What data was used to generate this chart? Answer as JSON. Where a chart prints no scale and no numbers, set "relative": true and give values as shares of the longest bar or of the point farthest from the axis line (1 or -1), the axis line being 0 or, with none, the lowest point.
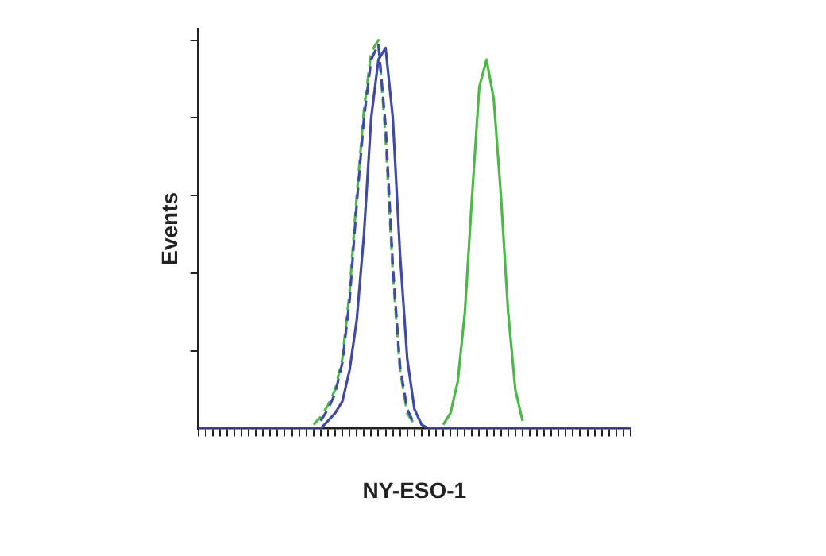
{
  "chart_data": {
    "type": "line",
    "relative": true,
    "xlabel": "NY-ESO-1",
    "ylabel": "Events",
    "legend": false,
    "grid": false,
    "marker": "none",
    "categories": [
      null,
      null,
      null,
      null,
      null,
      null,
      null,
      null,
      null,
      null,
      null,
      null,
      null,
      null,
      null,
      null,
      null,
      null,
      null,
      null,
      null,
      null,
      null,
      null,
      null,
      null,
      null,
      null,
      null,
      null,
      null,
      null,
      null,
      null,
      null,
      null,
      null,
      null,
      null,
      null,
      null,
      null,
      null,
      null,
      null,
      null,
      null,
      null,
      null,
      null,
      null,
      null,
      null,
      null,
      null,
      null,
      null,
      null,
      null,
      null,
      null
    ],
    "series": [
      {
        "color": "#3f4aa8",
        "line_style": "solid",
        "values": [
          0,
          0,
          0,
          0,
          0,
          0,
          0,
          0,
          0,
          0,
          0,
          0,
          0,
          0,
          0,
          0,
          0,
          0,
          0.02,
          0.04,
          0.07,
          0.15,
          0.28,
          0.5,
          0.8,
          0.95,
          0.98,
          0.8,
          0.45,
          0.18,
          0.05,
          0.01,
          0,
          0,
          0,
          0,
          0,
          0,
          0,
          0,
          0,
          0,
          0,
          0,
          0,
          0,
          0,
          0,
          0,
          0,
          0,
          0,
          0,
          0,
          0,
          0,
          0,
          0,
          0,
          0,
          0
        ]
      },
      {
        "color": "#3f4aa8",
        "line_style": "dashed",
        "values": [
          null,
          null,
          null,
          null,
          null,
          null,
          null,
          null,
          null,
          null,
          null,
          null,
          null,
          null,
          null,
          null,
          null,
          0.02,
          0.05,
          0.09,
          0.17,
          0.33,
          0.58,
          0.8,
          0.95,
          0.99,
          0.78,
          0.42,
          0.16,
          0.05,
          0.01,
          null,
          null,
          null,
          null,
          null,
          null,
          null,
          null,
          null,
          null,
          null,
          null,
          null,
          null,
          null,
          null,
          null,
          null,
          null,
          null,
          null,
          null,
          null,
          null,
          null,
          null,
          null,
          null,
          null,
          null
        ]
      },
      {
        "color": "#4cb848",
        "line_style": "dashed",
        "values": [
          null,
          null,
          null,
          null,
          null,
          null,
          null,
          null,
          null,
          null,
          null,
          null,
          null,
          null,
          null,
          null,
          0.01,
          0.03,
          0.06,
          0.1,
          0.18,
          0.35,
          0.6,
          0.82,
          0.97,
          1,
          0.75,
          0.4,
          0.15,
          0.04,
          0.01,
          null,
          null,
          null,
          null,
          null,
          null,
          null,
          null,
          null,
          null,
          null,
          null,
          null,
          null,
          null,
          null,
          null,
          null,
          null,
          null,
          null,
          null,
          null,
          null,
          null,
          null,
          null,
          null,
          null,
          null
        ]
      },
      {
        "color": "#4cb848",
        "line_style": "solid",
        "values": [
          null,
          null,
          null,
          null,
          null,
          null,
          null,
          null,
          null,
          null,
          null,
          null,
          null,
          null,
          null,
          null,
          null,
          null,
          null,
          null,
          null,
          null,
          null,
          null,
          null,
          null,
          null,
          null,
          null,
          null,
          null,
          null,
          null,
          null,
          0.01,
          0.04,
          0.12,
          0.3,
          0.6,
          0.88,
          0.95,
          0.85,
          0.6,
          0.3,
          0.1,
          0.02,
          null,
          null,
          null,
          null,
          null,
          null,
          null,
          null,
          null,
          null,
          null,
          null,
          null,
          null,
          null
        ]
      }
    ]
  }
}
